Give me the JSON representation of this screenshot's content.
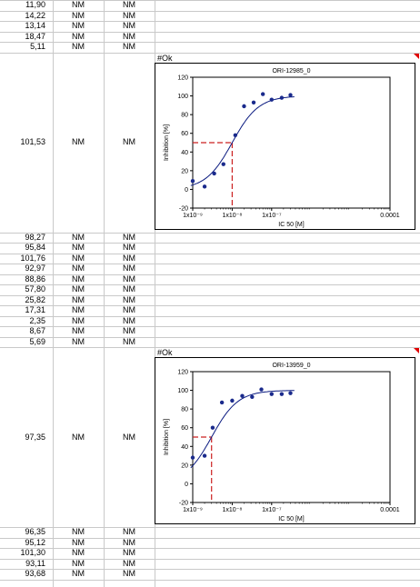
{
  "rows_top": [
    {
      "value": "11,90",
      "b": "NM",
      "c": "NM"
    },
    {
      "value": "14,22",
      "b": "NM",
      "c": "NM"
    },
    {
      "value": "13,14",
      "b": "NM",
      "c": "NM"
    },
    {
      "value": "18,47",
      "b": "NM",
      "c": "NM"
    },
    {
      "value": "5,11",
      "b": "NM",
      "c": "NM"
    }
  ],
  "block1": {
    "value": "101,53",
    "b": "NM",
    "c": "NM",
    "ok": "#Ok"
  },
  "rows_mid": [
    {
      "value": "98,27",
      "b": "NM",
      "c": "NM"
    },
    {
      "value": "95,84",
      "b": "NM",
      "c": "NM"
    },
    {
      "value": "101,76",
      "b": "NM",
      "c": "NM"
    },
    {
      "value": "92,97",
      "b": "NM",
      "c": "NM"
    },
    {
      "value": "88,86",
      "b": "NM",
      "c": "NM"
    },
    {
      "value": "57,80",
      "b": "NM",
      "c": "NM"
    },
    {
      "value": "25,82",
      "b": "NM",
      "c": "NM"
    },
    {
      "value": "17,31",
      "b": "NM",
      "c": "NM"
    },
    {
      "value": "2,35",
      "b": "NM",
      "c": "NM"
    },
    {
      "value": "8,67",
      "b": "NM",
      "c": "NM"
    },
    {
      "value": "5,69",
      "b": "NM",
      "c": "NM"
    }
  ],
  "block2": {
    "value": "97,35",
    "b": "NM",
    "c": "NM",
    "ok": "#Ok"
  },
  "rows_bottom": [
    {
      "value": "96,35",
      "b": "NM",
      "c": "NM"
    },
    {
      "value": "95,12",
      "b": "NM",
      "c": "NM"
    },
    {
      "value": "101,30",
      "b": "NM",
      "c": "NM"
    },
    {
      "value": "93,11",
      "b": "NM",
      "c": "NM"
    },
    {
      "value": "93,68",
      "b": "NM",
      "c": "NM"
    }
  ],
  "colors": {
    "grid": "#c9c9c9",
    "points": "#1a2a8c",
    "curve": "#0a1a80",
    "guide": "#cc2222",
    "flag": "#e00000"
  },
  "chart_data": [
    {
      "type": "scatter",
      "title": "ORI-12985_0",
      "xlabel": "IC 50 [M]",
      "ylabel": "Inhibition [%]",
      "x_scale": "log",
      "xlim": [
        1e-09,
        0.0001
      ],
      "ylim": [
        -20,
        120
      ],
      "x_ticks": [
        "1x10⁻⁹",
        "1x10⁻⁸",
        "1x10⁻⁷",
        "0.0001"
      ],
      "y_ticks": [
        "-20",
        "0",
        "20",
        "40",
        "60",
        "80",
        "100",
        "120"
      ],
      "ic50": 1e-08,
      "ic50_y": 50,
      "points": [
        {
          "x": 1e-09,
          "y": 9
        },
        {
          "x": 2e-09,
          "y": 3
        },
        {
          "x": 3.5e-09,
          "y": 17
        },
        {
          "x": 6e-09,
          "y": 27
        },
        {
          "x": 1.2e-08,
          "y": 58
        },
        {
          "x": 2e-08,
          "y": 89
        },
        {
          "x": 3.5e-08,
          "y": 93
        },
        {
          "x": 6e-08,
          "y": 102
        },
        {
          "x": 1e-07,
          "y": 96
        },
        {
          "x": 1.8e-07,
          "y": 98
        },
        {
          "x": 3e-07,
          "y": 101
        }
      ]
    },
    {
      "type": "scatter",
      "title": "ORI-13959_0",
      "xlabel": "IC 50 [M]",
      "ylabel": "Inhibition [%]",
      "x_scale": "log",
      "xlim": [
        1e-09,
        0.0001
      ],
      "ylim": [
        -20,
        120
      ],
      "x_ticks": [
        "1x10⁻⁹",
        "1x10⁻⁸",
        "1x10⁻⁷",
        "0.0001"
      ],
      "y_ticks": [
        "-20",
        "0",
        "20",
        "40",
        "60",
        "80",
        "100",
        "120"
      ],
      "ic50": 3e-09,
      "ic50_y": 50,
      "points": [
        {
          "x": 1e-09,
          "y": 28
        },
        {
          "x": 2e-09,
          "y": 30
        },
        {
          "x": 3.2e-09,
          "y": 60
        },
        {
          "x": 5.5e-09,
          "y": 87
        },
        {
          "x": 1e-08,
          "y": 89
        },
        {
          "x": 1.8e-08,
          "y": 94
        },
        {
          "x": 3.2e-08,
          "y": 93
        },
        {
          "x": 5.5e-08,
          "y": 101
        },
        {
          "x": 1e-07,
          "y": 96
        },
        {
          "x": 1.8e-07,
          "y": 96
        },
        {
          "x": 3e-07,
          "y": 97
        }
      ]
    }
  ]
}
